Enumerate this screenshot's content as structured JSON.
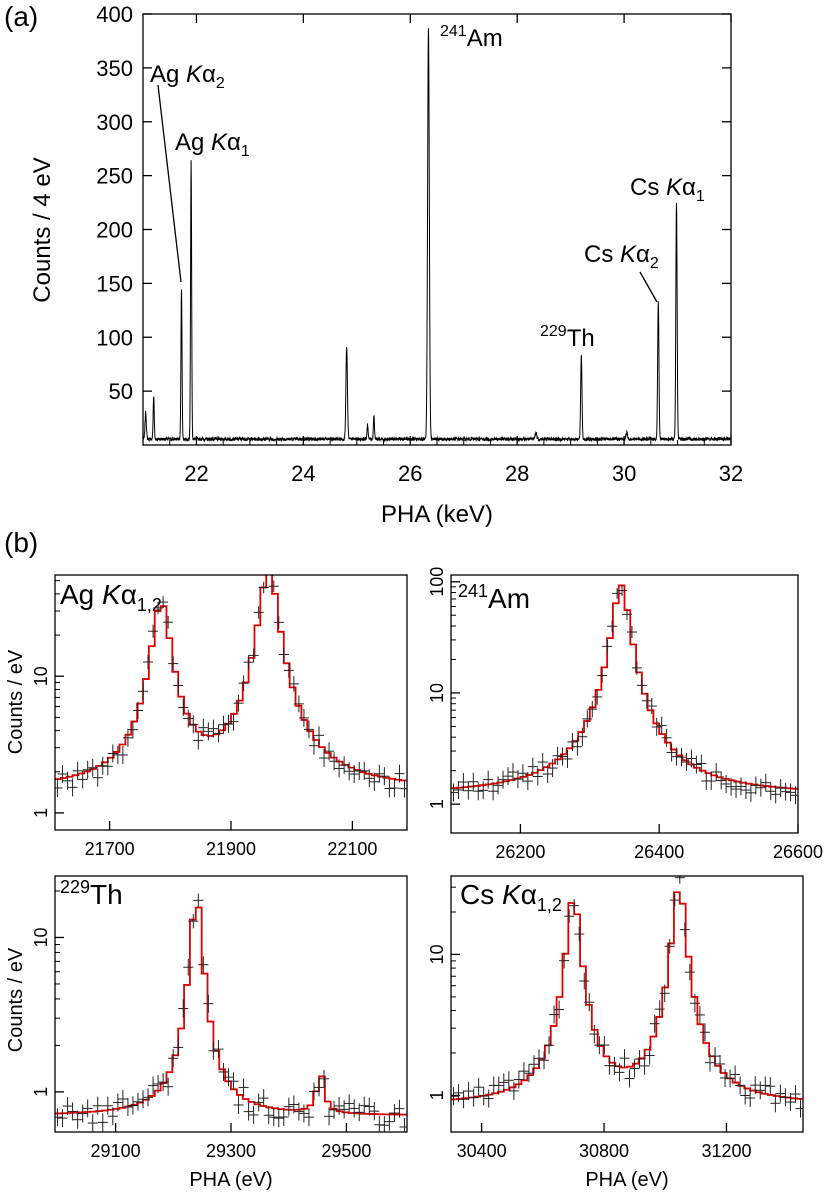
{
  "panel_letters": [
    "(a)",
    "(b)"
  ],
  "chart_data": [
    {
      "id": "a",
      "type": "line",
      "xlabel": "PHA (keV)",
      "ylabel": "Counts / 4 eV",
      "xlim": [
        21.0,
        32.0
      ],
      "ylim": [
        0,
        400
      ],
      "xticks": [
        "22",
        "24",
        "26",
        "28",
        "30",
        "32"
      ],
      "yticks": [
        "50",
        "100",
        "150",
        "200",
        "250",
        "300",
        "350",
        "400"
      ],
      "baseline": 4,
      "peaks": [
        {
          "x": 21.05,
          "y": 25,
          "w": 0.012
        },
        {
          "x": 21.2,
          "y": 40,
          "w": 0.01
        },
        {
          "x": 21.72,
          "y": 140,
          "w": 0.01
        },
        {
          "x": 21.9,
          "y": 258,
          "w": 0.01
        },
        {
          "x": 24.81,
          "y": 86,
          "w": 0.014
        },
        {
          "x": 25.2,
          "y": 14,
          "w": 0.01
        },
        {
          "x": 25.32,
          "y": 22,
          "w": 0.01
        },
        {
          "x": 26.34,
          "y": 380,
          "w": 0.016
        },
        {
          "x": 28.35,
          "y": 6,
          "w": 0.015
        },
        {
          "x": 29.2,
          "y": 78,
          "w": 0.012
        },
        {
          "x": 30.05,
          "y": 6,
          "w": 0.015
        },
        {
          "x": 30.64,
          "y": 128,
          "w": 0.012
        },
        {
          "x": 30.98,
          "y": 220,
          "w": 0.012
        }
      ],
      "annotations": [
        {
          "base": "Ag ",
          "italic": "K",
          "greek": "α",
          "sub": "2",
          "sup": ""
        },
        {
          "base": "Ag ",
          "italic": "K",
          "greek": "α",
          "sub": "1",
          "sup": ""
        },
        {
          "base": "Am",
          "italic": "",
          "greek": "",
          "sub": "",
          "sup": "241"
        },
        {
          "base": "Th",
          "italic": "",
          "greek": "",
          "sub": "",
          "sup": "229"
        },
        {
          "base": "Cs ",
          "italic": "K",
          "greek": "α",
          "sub": "2",
          "sup": ""
        },
        {
          "base": "Cs ",
          "italic": "K",
          "greek": "α",
          "sub": "1",
          "sup": ""
        }
      ],
      "colors": {
        "spectrum": "#000000"
      }
    },
    {
      "id": "b1",
      "type": "line",
      "label": {
        "base": "Ag ",
        "italic": "K",
        "greek": "α",
        "sub": "1,2",
        "sup": ""
      },
      "ylabel": "Counts / eV",
      "xlim": [
        21610,
        22190
      ],
      "ylim_log": [
        0.75,
        55
      ],
      "xticks": [
        "21700",
        "21900",
        "22100"
      ],
      "yticks": [
        "1",
        "10"
      ],
      "baseline": 1.45,
      "peaks": [
        {
          "x": 21785,
          "h": 33,
          "gamma": 28
        },
        {
          "x": 21962,
          "h": 60,
          "gamma": 28
        }
      ],
      "colors": {
        "fit": "#e00000",
        "data": "#222222"
      }
    },
    {
      "id": "b2",
      "type": "line",
      "label": {
        "base": "Am",
        "italic": "",
        "greek": "",
        "sub": "",
        "sup": "241"
      },
      "ylabel": "",
      "xlim": [
        26100,
        26600
      ],
      "ylim_log": [
        0.55,
        115
      ],
      "xticks": [
        "26200",
        "26400",
        "26600"
      ],
      "yticks": [
        "1",
        "10",
        "100"
      ],
      "baseline": 1.2,
      "peaks": [
        {
          "x": 26345,
          "h": 92,
          "gamma": 22
        }
      ],
      "colors": {
        "fit": "#e00000",
        "data": "#222222"
      }
    },
    {
      "id": "b3",
      "type": "line",
      "label": {
        "base": "Th",
        "italic": "",
        "greek": "",
        "sub": "",
        "sup": "229"
      },
      "ylabel": "Counts / eV",
      "xlabel": "PHA (eV)",
      "xlim": [
        28995,
        29605
      ],
      "ylim_log": [
        0.55,
        25
      ],
      "xticks": [
        "29100",
        "29300",
        "29500"
      ],
      "yticks": [
        "1",
        "10"
      ],
      "baseline": 0.7,
      "peaks": [
        {
          "x": 29240,
          "h": 18,
          "gamma": 18
        },
        {
          "x": 29455,
          "h": 0.6,
          "gamma": 14
        }
      ],
      "colors": {
        "fit": "#e00000",
        "data": "#222222"
      }
    },
    {
      "id": "b4",
      "type": "line",
      "label": {
        "base": "Cs ",
        "italic": "K",
        "greek": "α",
        "sub": "1,2",
        "sup": ""
      },
      "ylabel": "",
      "xlabel": "PHA (eV)",
      "xlim": [
        30300,
        31450
      ],
      "ylim_log": [
        0.55,
        36
      ],
      "xticks": [
        "30400",
        "30800",
        "31200"
      ],
      "yticks": [
        "1",
        "10"
      ],
      "baseline": 0.85,
      "peaks": [
        {
          "x": 30700,
          "h": 25,
          "gamma": 40
        },
        {
          "x": 31045,
          "h": 30,
          "gamma": 40
        }
      ],
      "colors": {
        "fit": "#e00000",
        "data": "#222222"
      }
    }
  ]
}
